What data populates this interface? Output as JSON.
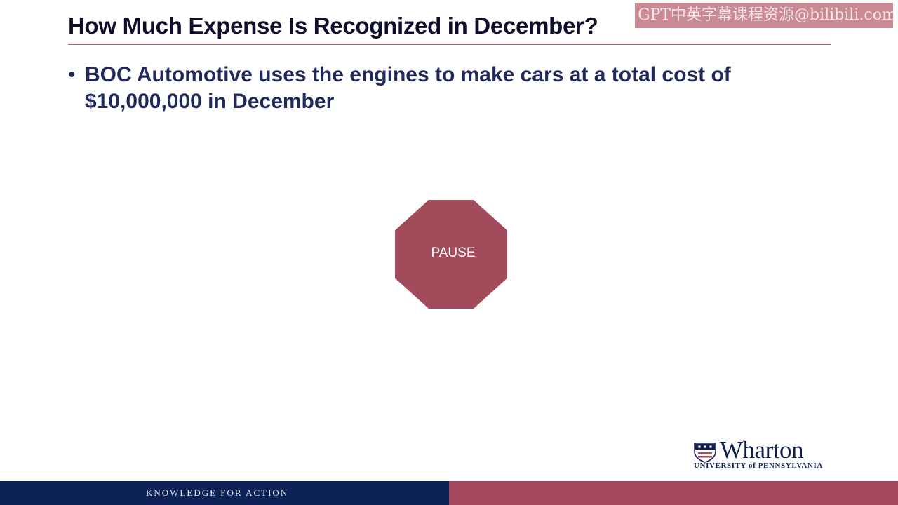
{
  "watermark": {
    "text": "GPT中英字幕课程资源@bilibili.com"
  },
  "slide": {
    "title": "How Much Expense Is Recognized in December?",
    "bullets": [
      {
        "marker": "•",
        "text": "BOC Automotive uses the engines to make cars at a total cost of $10,000,000 in December"
      }
    ],
    "pause_sign": {
      "label": "PAUSE",
      "color": "#a24b5a"
    }
  },
  "logo": {
    "name": "Wharton",
    "subtitle": "UNIVERSITY of PENNSYLVANIA",
    "icon": "penn-shield-icon"
  },
  "footer": {
    "tagline": "KNOWLEDGE FOR ACTION",
    "colors": {
      "left": "#0d2358",
      "right": "#a3495b"
    }
  }
}
